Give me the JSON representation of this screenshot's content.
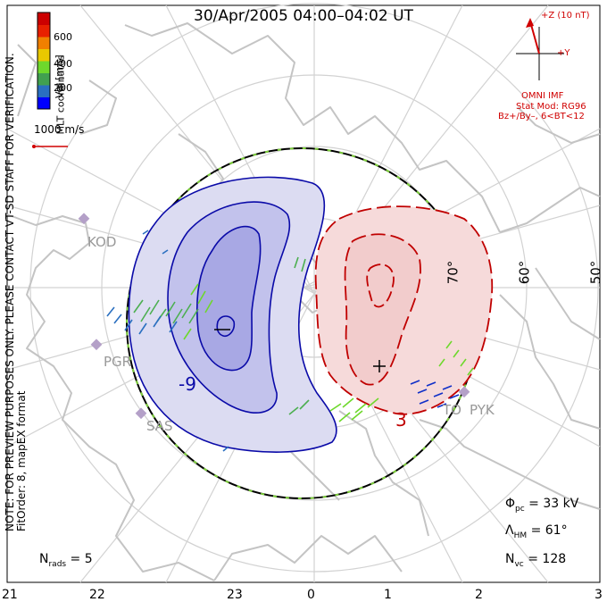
{
  "title": "30/Apr/2005 04:00–04:02 UT",
  "note_line1": "NOTE: FOR PREVIEW PURPOSES ONLY. PLEASE CONTACT VT-SD STAFF FOR VERIFICATION.",
  "note_line2": "FitOrder: 8, mapEX format",
  "coords_label": "MLT coordinates",
  "colorbar": {
    "label": "Vel [m/s]",
    "ticks": [
      "600",
      "400",
      "200"
    ],
    "colors": [
      "#0000ff",
      "#2a6fc0",
      "#41a050",
      "#6ed82c",
      "#e8c800",
      "#f08000",
      "#e82000",
      "#cc0000"
    ]
  },
  "scale_vector": "1000 m/s",
  "imf": {
    "z_label": "+Z (10 nT)",
    "y_label": "+Y",
    "source": "OMNI IMF",
    "model": "Stat Mod: RG96",
    "bins": "Bz+/By–, 6<BT<12"
  },
  "latitudes": [
    "70°",
    "60°",
    "50°"
  ],
  "stations": [
    "KOD",
    "PGR",
    "SAS",
    "TO",
    "PYK"
  ],
  "contour_labels": [
    "-9",
    "3"
  ],
  "mlt_hours": [
    "21",
    "22",
    "23",
    "0",
    "1",
    "2",
    "3"
  ],
  "stats": {
    "phi_pc": "33 kV",
    "lambda_hm": "61°",
    "n_vc": "128",
    "n_rads": "5"
  },
  "colors": {
    "negative_cell": "#0000b0",
    "positive_cell": "#cc0000",
    "coast": "#c8c8c8",
    "grid": "#d2d2d2"
  }
}
